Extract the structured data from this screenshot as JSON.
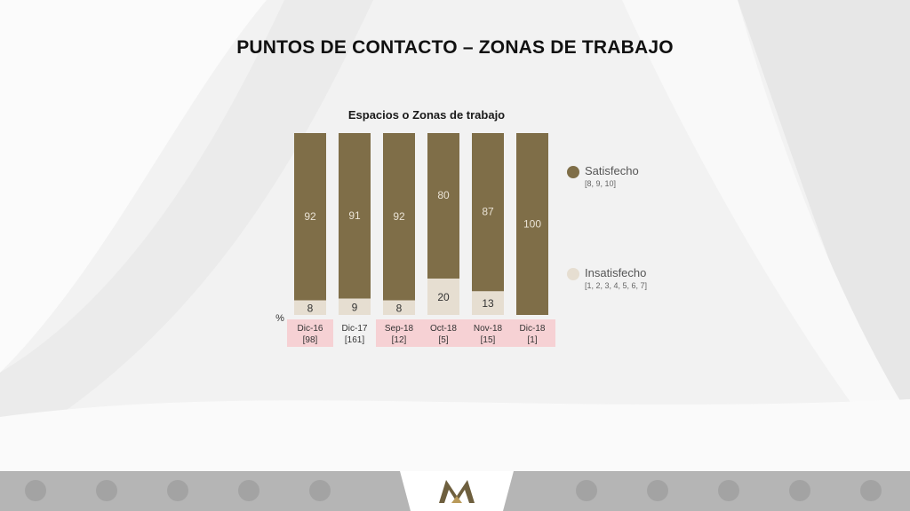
{
  "title": "PUNTOS DE CONTACTO – ZONAS DE TRABAJO",
  "colors": {
    "satisfecho": "#7f6e48",
    "insatisfecho": "#e6ded1",
    "highlight": "#f6d1d4"
  },
  "chart_data": {
    "type": "bar",
    "stacked": true,
    "title": "Espacios o Zonas de trabajo",
    "ylabel": "%",
    "ylim": [
      0,
      100
    ],
    "categories": [
      "Dic-16",
      "Dic-17",
      "Sep-18",
      "Oct-18",
      "Nov-18",
      "Dic-18"
    ],
    "bases": [
      "[98]",
      "[161]",
      "[12]",
      "[5]",
      "[15]",
      "[1]"
    ],
    "highlighted": [
      true,
      false,
      true,
      true,
      true,
      true
    ],
    "series": [
      {
        "name": "Insatisfecho",
        "values": [
          8,
          9,
          8,
          20,
          13,
          0
        ]
      },
      {
        "name": "Satisfecho",
        "values": [
          92,
          91,
          92,
          80,
          87,
          100
        ]
      }
    ],
    "legend_position": "right",
    "grid": false
  },
  "legend": [
    {
      "label": "Satisfecho",
      "sub": "[8, 9, 10]",
      "icon": "satisfecho-swatch-icon"
    },
    {
      "label": "Insatisfecho",
      "sub": "[1, 2, 3, 4, 5, 6, 7]",
      "icon": "insatisfecho-swatch-icon"
    }
  ]
}
